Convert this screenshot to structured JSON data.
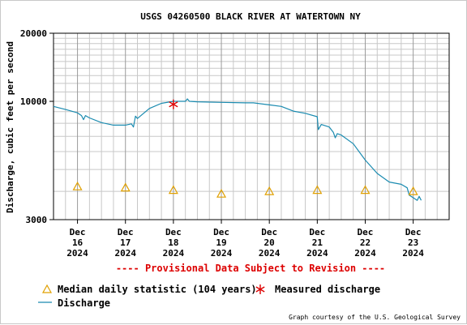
{
  "chart_data": {
    "type": "line",
    "title": "USGS 04260500 BLACK RIVER AT WATERTOWN NY",
    "ylabel": "Discharge, cubic feet per second",
    "xlabel": "",
    "y_scale": "log",
    "ylim": [
      3000,
      20000
    ],
    "xlim": [
      "2024-12-15T12:00",
      "2024-12-23T18:00"
    ],
    "y_tick_labels": [
      "20000",
      "10000",
      "3000"
    ],
    "x_ticks": [
      {
        "date": "2024-12-16",
        "line1": "Dec",
        "line2": "16",
        "line3": "2024"
      },
      {
        "date": "2024-12-17",
        "line1": "Dec",
        "line2": "17",
        "line3": "2024"
      },
      {
        "date": "2024-12-18",
        "line1": "Dec",
        "line2": "18",
        "line3": "2024"
      },
      {
        "date": "2024-12-19",
        "line1": "Dec",
        "line2": "19",
        "line3": "2024"
      },
      {
        "date": "2024-12-20",
        "line1": "Dec",
        "line2": "20",
        "line3": "2024"
      },
      {
        "date": "2024-12-21",
        "line1": "Dec",
        "line2": "21",
        "line3": "2024"
      },
      {
        "date": "2024-12-22",
        "line1": "Dec",
        "line2": "22",
        "line3": "2024"
      },
      {
        "date": "2024-12-23",
        "line1": "Dec",
        "line2": "23",
        "line3": "2024"
      }
    ],
    "grid": true,
    "series": [
      {
        "name": "Discharge",
        "color": "#1a8bb0",
        "points": [
          [
            "2024-12-15T12:00",
            9500
          ],
          [
            "2024-12-15T18:00",
            9200
          ],
          [
            "2024-12-16T00:00",
            8900
          ],
          [
            "2024-12-16T02:00",
            8650
          ],
          [
            "2024-12-16T03:00",
            8300
          ],
          [
            "2024-12-16T04:00",
            8650
          ],
          [
            "2024-12-16T06:00",
            8450
          ],
          [
            "2024-12-16T12:00",
            8050
          ],
          [
            "2024-12-16T18:00",
            7850
          ],
          [
            "2024-12-17T00:00",
            7850
          ],
          [
            "2024-12-17T03:00",
            7950
          ],
          [
            "2024-12-17T04:00",
            7700
          ],
          [
            "2024-12-17T05:00",
            8600
          ],
          [
            "2024-12-17T06:00",
            8400
          ],
          [
            "2024-12-17T12:00",
            9300
          ],
          [
            "2024-12-17T18:00",
            9800
          ],
          [
            "2024-12-18T00:00",
            10000
          ],
          [
            "2024-12-18T06:00",
            10000
          ],
          [
            "2024-12-18T07:00",
            10250
          ],
          [
            "2024-12-18T08:00",
            10000
          ],
          [
            "2024-12-18T12:00",
            9950
          ],
          [
            "2024-12-19T00:00",
            9900
          ],
          [
            "2024-12-19T12:00",
            9850
          ],
          [
            "2024-12-19T16:00",
            9850
          ],
          [
            "2024-12-20T00:00",
            9650
          ],
          [
            "2024-12-20T06:00",
            9500
          ],
          [
            "2024-12-20T12:00",
            9050
          ],
          [
            "2024-12-20T18:00",
            8850
          ],
          [
            "2024-12-21T00:00",
            8550
          ],
          [
            "2024-12-21T00:30",
            7500
          ],
          [
            "2024-12-21T02:00",
            7900
          ],
          [
            "2024-12-21T06:00",
            7700
          ],
          [
            "2024-12-21T08:00",
            7300
          ],
          [
            "2024-12-21T09:00",
            6900
          ],
          [
            "2024-12-21T10:00",
            7200
          ],
          [
            "2024-12-21T12:00",
            7100
          ],
          [
            "2024-12-21T18:00",
            6500
          ],
          [
            "2024-12-22T00:00",
            5500
          ],
          [
            "2024-12-22T06:00",
            4800
          ],
          [
            "2024-12-22T12:00",
            4400
          ],
          [
            "2024-12-22T18:00",
            4300
          ],
          [
            "2024-12-22T21:00",
            4150
          ],
          [
            "2024-12-22T22:00",
            3850
          ],
          [
            "2024-12-23T00:00",
            3750
          ],
          [
            "2024-12-23T02:00",
            3650
          ],
          [
            "2024-12-23T03:00",
            3800
          ],
          [
            "2024-12-23T04:00",
            3650
          ]
        ]
      },
      {
        "name": "Median daily statistic (104 years)",
        "color": "#e0a000",
        "marker": "triangle",
        "points": [
          [
            "2024-12-16T00:00",
            4200
          ],
          [
            "2024-12-17T00:00",
            4150
          ],
          [
            "2024-12-18T00:00",
            4050
          ],
          [
            "2024-12-19T00:00",
            3900
          ],
          [
            "2024-12-20T00:00",
            4000
          ],
          [
            "2024-12-21T00:00",
            4050
          ],
          [
            "2024-12-22T00:00",
            4050
          ],
          [
            "2024-12-23T00:00",
            4000
          ]
        ]
      },
      {
        "name": "Measured discharge",
        "color": "#dd0000",
        "marker": "asterisk",
        "points": [
          [
            "2024-12-18T00:00",
            9700
          ]
        ]
      }
    ],
    "annotation": "---- Provisional Data Subject to Revision ----",
    "legend": {
      "placement": "bottom",
      "median_label": "Median daily statistic (104 years)",
      "measured_label": "Measured discharge",
      "discharge_label": "Discharge"
    },
    "credit": "Graph courtesy of the U.S. Geological Survey",
    "colors": {
      "discharge": "#1a8bb0",
      "median": "#e0a000",
      "measured": "#dd0000",
      "annotation": "#dd0000",
      "grid": "#c8c8c8"
    }
  }
}
